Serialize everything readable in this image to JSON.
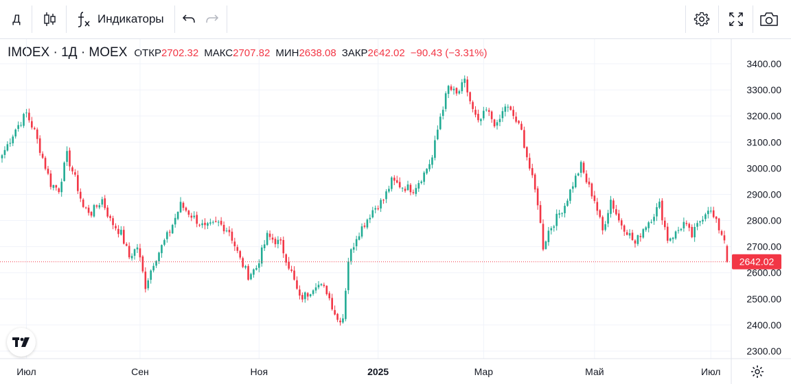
{
  "toolbar": {
    "interval": "Д",
    "indicators_label": "Индикаторы"
  },
  "legend": {
    "symbol": "IMOEX · 1Д · MOEX",
    "open_label": "ОТКР",
    "open_value": "2702.32",
    "high_label": "МАКС",
    "high_value": "2707.82",
    "low_label": "МИН",
    "low_value": "2638.08",
    "close_label": "ЗАКР",
    "close_value": "2642.02",
    "change": "−90.43 (−3.31%)"
  },
  "colors": {
    "up": "#22ab94",
    "down": "#f23645",
    "grid": "#f0f3fa",
    "text": "#131722"
  },
  "chart_data": {
    "type": "candlestick",
    "title": "IMOEX · 1Д · MOEX",
    "y_axis": {
      "min": 2270,
      "max": 3450,
      "ticks": [
        3400,
        3300,
        3200,
        3100,
        3000,
        2900,
        2800,
        2700,
        2600,
        2500,
        2400,
        2300
      ],
      "tick_labels": [
        "3400.00",
        "3300.00",
        "3200.00",
        "3100.00",
        "3000.00",
        "2900.00",
        "2800.00",
        "2700.00",
        "2600.00",
        "2500.00",
        "2400.00",
        "2300.00"
      ]
    },
    "x_axis": {
      "labels": [
        "Июл",
        "Сен",
        "Ноя",
        "2025",
        "Мар",
        "Май",
        "Июл"
      ],
      "label_indices": [
        9,
        51,
        95,
        139,
        178,
        219,
        262
      ]
    },
    "last_price": 2642.02,
    "last_price_label": "2642.02",
    "anchors": [
      [
        0,
        3050
      ],
      [
        5,
        3150
      ],
      [
        9,
        3210
      ],
      [
        12,
        3140
      ],
      [
        15,
        3040
      ],
      [
        18,
        2940
      ],
      [
        21,
        2920
      ],
      [
        24,
        3050
      ],
      [
        27,
        2960
      ],
      [
        30,
        2850
      ],
      [
        33,
        2830
      ],
      [
        37,
        2880
      ],
      [
        40,
        2800
      ],
      [
        44,
        2750
      ],
      [
        47,
        2660
      ],
      [
        50,
        2700
      ],
      [
        53,
        2550
      ],
      [
        56,
        2640
      ],
      [
        59,
        2700
      ],
      [
        62,
        2760
      ],
      [
        66,
        2860
      ],
      [
        70,
        2820
      ],
      [
        75,
        2770
      ],
      [
        80,
        2790
      ],
      [
        84,
        2760
      ],
      [
        88,
        2650
      ],
      [
        91,
        2590
      ],
      [
        94,
        2620
      ],
      [
        98,
        2740
      ],
      [
        103,
        2710
      ],
      [
        107,
        2600
      ],
      [
        110,
        2500
      ],
      [
        113,
        2520
      ],
      [
        116,
        2560
      ],
      [
        120,
        2530
      ],
      [
        124,
        2420
      ],
      [
        126,
        2430
      ],
      [
        128,
        2650
      ],
      [
        131,
        2740
      ],
      [
        134,
        2790
      ],
      [
        137,
        2840
      ],
      [
        141,
        2880
      ],
      [
        144,
        2950
      ],
      [
        148,
        2930
      ],
      [
        152,
        2920
      ],
      [
        156,
        2980
      ],
      [
        159,
        3040
      ],
      [
        162,
        3200
      ],
      [
        165,
        3310
      ],
      [
        168,
        3280
      ],
      [
        171,
        3330
      ],
      [
        174,
        3220
      ],
      [
        176,
        3170
      ],
      [
        179,
        3220
      ],
      [
        183,
        3160
      ],
      [
        186,
        3240
      ],
      [
        189,
        3200
      ],
      [
        192,
        3140
      ],
      [
        195,
        3000
      ],
      [
        198,
        2870
      ],
      [
        200,
        2700
      ],
      [
        202,
        2760
      ],
      [
        205,
        2810
      ],
      [
        208,
        2860
      ],
      [
        211,
        2940
      ],
      [
        214,
        3010
      ],
      [
        216,
        2950
      ],
      [
        219,
        2880
      ],
      [
        222,
        2760
      ],
      [
        225,
        2880
      ],
      [
        228,
        2800
      ],
      [
        231,
        2760
      ],
      [
        234,
        2710
      ],
      [
        237,
        2770
      ],
      [
        240,
        2810
      ],
      [
        243,
        2860
      ],
      [
        246,
        2730
      ],
      [
        249,
        2750
      ],
      [
        252,
        2790
      ],
      [
        255,
        2740
      ],
      [
        258,
        2800
      ],
      [
        261,
        2850
      ],
      [
        264,
        2790
      ],
      [
        267,
        2730
      ],
      [
        268,
        2642
      ]
    ]
  }
}
